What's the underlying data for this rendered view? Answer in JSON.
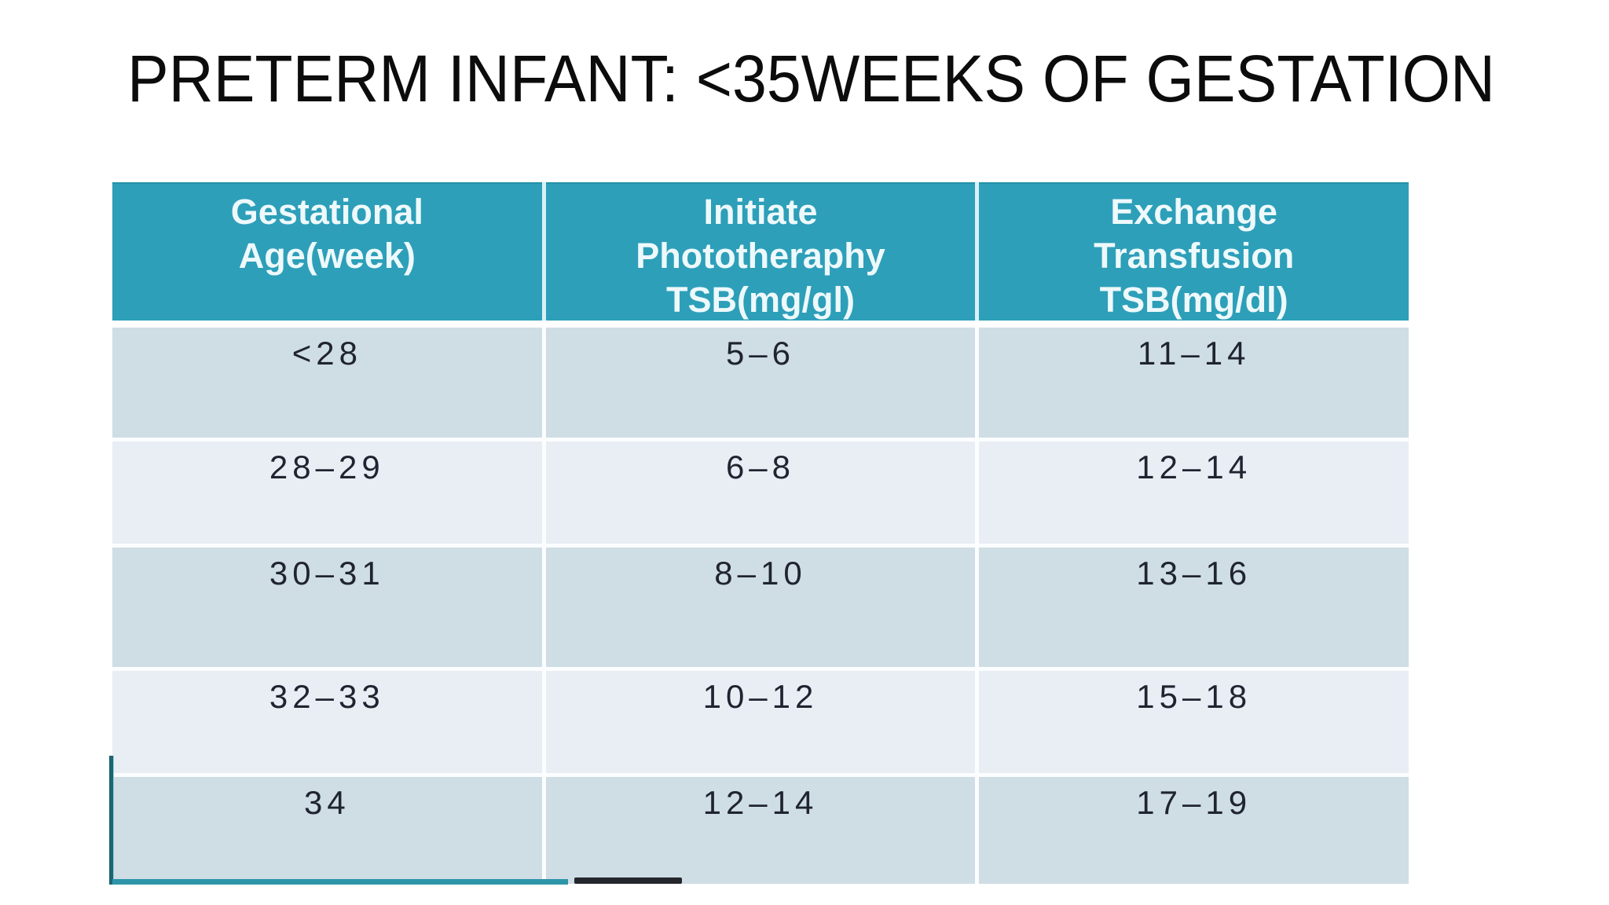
{
  "slide": {
    "title": "PRETERM INFANT: <35WEEKS OF GESTATION"
  },
  "table": {
    "headers": [
      {
        "label": "Gestational\nAge(week)"
      },
      {
        "label": "Initiate\nPhototheraphy\nTSB(mg/gl)"
      },
      {
        "label": "Exchange\nTransfusion\nTSB(mg/dl)"
      }
    ],
    "rows": [
      {
        "cells": [
          "<28",
          "5–6",
          "11–14"
        ]
      },
      {
        "cells": [
          "28–29",
          "6–8",
          "12–14"
        ]
      },
      {
        "cells": [
          "30–31",
          "8–10",
          "13–16"
        ]
      },
      {
        "cells": [
          "32–33",
          "10–12",
          "15–18"
        ]
      },
      {
        "cells": [
          "34",
          "12–14",
          "17–19"
        ]
      }
    ]
  },
  "colors": {
    "header_bg": "#2d9fb9",
    "header_text": "#eef9fb",
    "row_dark": "#cfdde5",
    "row_light": "#e9eef5",
    "accent_teal": "#1d6470",
    "title_text": "#0c0c0c",
    "cell_text": "#1f2430"
  }
}
